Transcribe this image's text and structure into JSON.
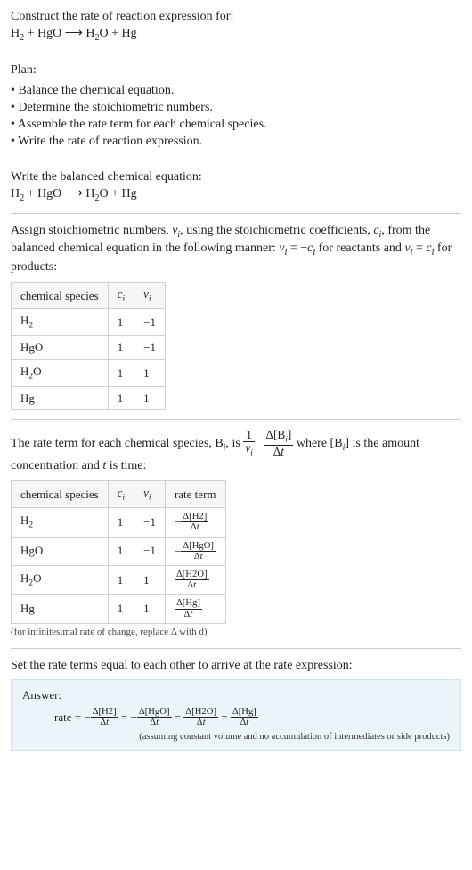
{
  "intro": {
    "prompt": "Construct the rate of reaction expression for:",
    "equation_html": "H<sub>2</sub> + HgO  ⟶  H<sub>2</sub>O + Hg"
  },
  "plan": {
    "heading": "Plan:",
    "items": [
      "Balance the chemical equation.",
      "Determine the stoichiometric numbers.",
      "Assemble the rate term for each chemical species.",
      "Write the rate of reaction expression."
    ]
  },
  "balanced": {
    "heading": "Write the balanced chemical equation:",
    "equation_html": "H<sub>2</sub> + HgO  ⟶  H<sub>2</sub>O + Hg"
  },
  "stoich_para_html": "Assign stoichiometric numbers, <i>ν<sub>i</sub></i>, using the stoichiometric coefficients, <i>c<sub>i</sub></i>, from the balanced chemical equation in the following manner: <i>ν<sub>i</sub></i> = −<i>c<sub>i</sub></i> for reactants and <i>ν<sub>i</sub></i> = <i>c<sub>i</sub></i> for products:",
  "stoich_table": {
    "headers": [
      "chemical species",
      "c_i",
      "ν_i"
    ],
    "headers_html": [
      "chemical species",
      "<i>c<sub>i</sub></i>",
      "<i>ν<sub>i</sub></i>"
    ],
    "rows": [
      {
        "species_html": "H<sub>2</sub>",
        "c": "1",
        "nu": "−1"
      },
      {
        "species_html": "HgO",
        "c": "1",
        "nu": "−1"
      },
      {
        "species_html": "H<sub>2</sub>O",
        "c": "1",
        "nu": "1"
      },
      {
        "species_html": "Hg",
        "c": "1",
        "nu": "1"
      }
    ]
  },
  "rate_para": {
    "pre_html": "The rate term for each chemical species, B<sub><i>i</i></sub>, is ",
    "post_html": " where [B<sub><i>i</i></sub>] is the amount concentration and <i>t</i> is time:",
    "frac1_num_html": "1",
    "frac1_den_html": "<i>ν<sub>i</sub></i>",
    "frac2_num_html": "Δ[B<sub><i>i</i></sub>]",
    "frac2_den_html": "Δ<i>t</i>"
  },
  "rate_table": {
    "headers_html": [
      "chemical species",
      "<i>c<sub>i</sub></i>",
      "<i>ν<sub>i</sub></i>",
      "rate term"
    ],
    "rows": [
      {
        "species_html": "H<sub>2</sub>",
        "c": "1",
        "nu": "−1",
        "rate_num_html": "Δ[H2]",
        "rate_den_html": "Δ<i>t</i>",
        "neg": true
      },
      {
        "species_html": "HgO",
        "c": "1",
        "nu": "−1",
        "rate_num_html": "Δ[HgO]",
        "rate_den_html": "Δ<i>t</i>",
        "neg": true
      },
      {
        "species_html": "H<sub>2</sub>O",
        "c": "1",
        "nu": "1",
        "rate_num_html": "Δ[H2O]",
        "rate_den_html": "Δ<i>t</i>",
        "neg": false
      },
      {
        "species_html": "Hg",
        "c": "1",
        "nu": "1",
        "rate_num_html": "Δ[Hg]",
        "rate_den_html": "Δ<i>t</i>",
        "neg": false
      }
    ],
    "footnote": "(for infinitesimal rate of change, replace Δ with d)"
  },
  "final": {
    "heading": "Set the rate terms equal to each other to arrive at the rate expression:",
    "answer_label": "Answer:",
    "rate_prefix": "rate = ",
    "terms": [
      {
        "neg": true,
        "num_html": "Δ[H2]",
        "den_html": "Δ<i>t</i>"
      },
      {
        "neg": true,
        "num_html": "Δ[HgO]",
        "den_html": "Δ<i>t</i>"
      },
      {
        "neg": false,
        "num_html": "Δ[H2O]",
        "den_html": "Δ<i>t</i>"
      },
      {
        "neg": false,
        "num_html": "Δ[Hg]",
        "den_html": "Δ<i>t</i>"
      }
    ],
    "assumption": "(assuming constant volume and no accumulation of intermediates or side products)"
  }
}
